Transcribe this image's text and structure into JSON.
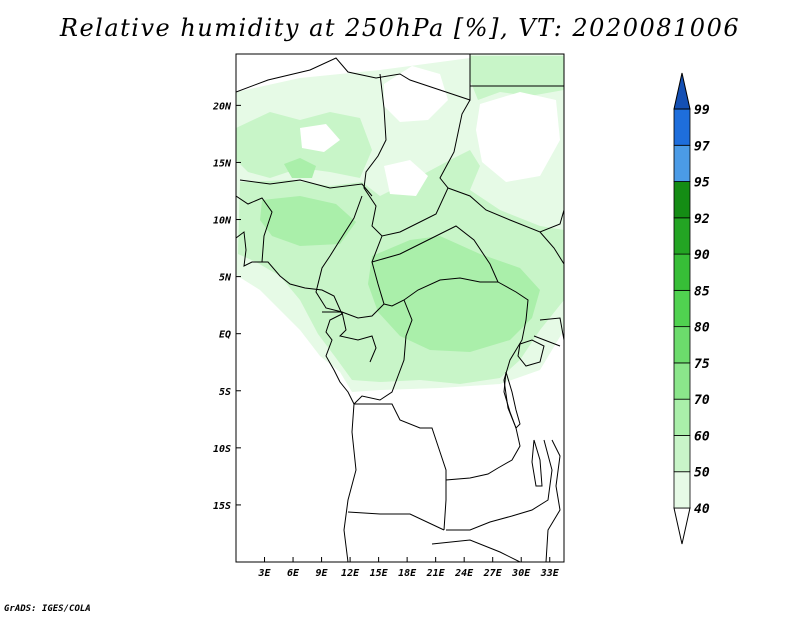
{
  "title": "Relative humidity at 250hPa [%], VT: 2020081006",
  "credit": "GrADS: IGES/COLA",
  "map": {
    "lon_range": [
      0,
      34.5
    ],
    "lat_range": [
      -20,
      24.5
    ],
    "lat_ticks": [
      {
        "value": 20,
        "label": "20N"
      },
      {
        "value": 15,
        "label": "15N"
      },
      {
        "value": 10,
        "label": "10N"
      },
      {
        "value": 5,
        "label": "5N"
      },
      {
        "value": 0,
        "label": "EQ"
      },
      {
        "value": -5,
        "label": "5S"
      },
      {
        "value": -10,
        "label": "10S"
      },
      {
        "value": -15,
        "label": "15S"
      }
    ],
    "lon_ticks": [
      {
        "value": 3,
        "label": "3E"
      },
      {
        "value": 6,
        "label": "6E"
      },
      {
        "value": 9,
        "label": "9E"
      },
      {
        "value": 12,
        "label": "12E"
      },
      {
        "value": 15,
        "label": "15E"
      },
      {
        "value": 18,
        "label": "18E"
      },
      {
        "value": 21,
        "label": "21E"
      },
      {
        "value": 24,
        "label": "24E"
      },
      {
        "value": 27,
        "label": "27E"
      },
      {
        "value": 30,
        "label": "30E"
      },
      {
        "value": 33,
        "label": "33E"
      }
    ]
  },
  "legend": {
    "levels": [
      "40",
      "50",
      "60",
      "70",
      "75",
      "80",
      "85",
      "90",
      "92",
      "95",
      "97",
      "99"
    ],
    "colors": [
      "#ffffff",
      "#e6fae6",
      "#c8f5c8",
      "#aaefaa",
      "#8be68b",
      "#6cdc6c",
      "#50d250",
      "#37be37",
      "#23a523",
      "#148c14",
      "#4b9be6",
      "#1e6edc",
      "#1450b4"
    ]
  }
}
